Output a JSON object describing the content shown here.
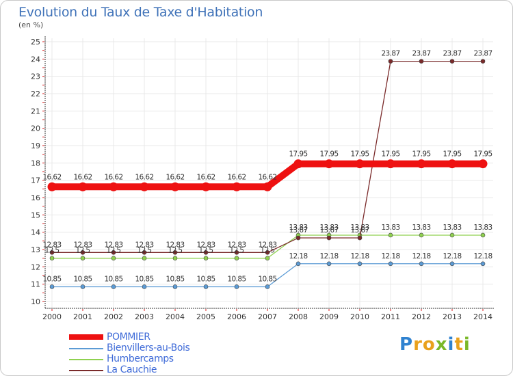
{
  "title": "Evolution du Taux de Taxe d'Habitation",
  "subtitle": "(en %)",
  "brand": {
    "letters": [
      {
        "char": "P",
        "color": "#2f82d0"
      },
      {
        "char": "r",
        "color": "#e9a11d"
      },
      {
        "char": "o",
        "color": "#e9a11d"
      },
      {
        "char": "x",
        "color": "#7ab829"
      },
      {
        "char": "i",
        "color": "#2f82d0"
      },
      {
        "char": "t",
        "color": "#e9a11d"
      },
      {
        "char": "i",
        "color": "#7ab829"
      }
    ]
  },
  "chart_data": {
    "type": "line",
    "title": "Evolution du Taux de Taxe d'Habitation",
    "ylabel": "(en %)",
    "xlabel": "",
    "ylim": [
      10,
      25
    ],
    "y_ticks": [
      10,
      11,
      12,
      13,
      14,
      15,
      16,
      17,
      18,
      19,
      20,
      21,
      22,
      23,
      24,
      25
    ],
    "grid": true,
    "legend_position": "bottom-left",
    "x": [
      "2000",
      "2001",
      "2002",
      "2003",
      "2004",
      "2005",
      "2006",
      "2007",
      "2008",
      "2009",
      "2010",
      "2011",
      "2012",
      "2013",
      "2014"
    ],
    "series": [
      {
        "name": "POMMIER",
        "color": "#ee1111",
        "style": "thick",
        "values": [
          16.62,
          16.62,
          16.62,
          16.62,
          16.62,
          16.62,
          16.62,
          16.62,
          17.95,
          17.95,
          17.95,
          17.95,
          17.95,
          17.95,
          17.95
        ],
        "labels": [
          "16.62",
          "16.62",
          "16.62",
          "16.62",
          "16.62",
          "16.62",
          "16.62",
          "16.62",
          "17.95",
          "17.95",
          "17.95",
          "17.95",
          "17.95",
          "17.95",
          "17.95"
        ]
      },
      {
        "name": "Bienvillers-au-Bois",
        "color": "#5b9bd5",
        "style": "thin",
        "values": [
          10.85,
          10.85,
          10.85,
          10.85,
          10.85,
          10.85,
          10.85,
          10.85,
          12.18,
          12.18,
          12.18,
          12.18,
          12.18,
          12.18,
          12.18
        ],
        "labels": [
          "10.85",
          "10.85",
          "10.85",
          "10.85",
          "10.85",
          "10.85",
          "10.85",
          "10.85",
          "12.18",
          "12.18",
          "12.18",
          "12.18",
          "12.18",
          "12.18",
          "12.18"
        ]
      },
      {
        "name": "Humbercamps",
        "color": "#8fd14f",
        "style": "thin",
        "values": [
          12.5,
          12.5,
          12.5,
          12.5,
          12.5,
          12.5,
          12.5,
          12.5,
          13.83,
          13.83,
          13.83,
          13.83,
          13.83,
          13.83,
          13.83
        ],
        "labels": [
          "12.5",
          "12.5",
          "12.5",
          "12.5",
          "12.5",
          "12.5",
          "12.5",
          "12.5",
          "13.83",
          "13.83",
          "13.83",
          "13.83",
          "13.83",
          "13.83",
          "13.83"
        ]
      },
      {
        "name": "La Cauchie",
        "color": "#7a2a2a",
        "style": "thin",
        "values": [
          12.83,
          12.83,
          12.83,
          12.83,
          12.83,
          12.83,
          12.83,
          12.83,
          13.67,
          13.67,
          13.67,
          23.87,
          23.87,
          23.87,
          23.87
        ],
        "labels": [
          "12.83",
          "12.83",
          "12.83",
          "12.83",
          "12.83",
          "12.83",
          "12.83",
          "12.83",
          "13.67",
          "13.67",
          "13.67",
          "23.87",
          "23.87",
          "23.87",
          "23.87"
        ]
      }
    ]
  }
}
